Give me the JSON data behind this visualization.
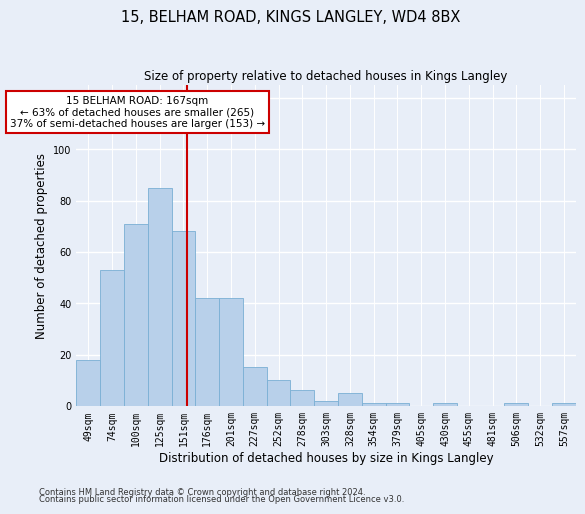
{
  "title": "15, BELHAM ROAD, KINGS LANGLEY, WD4 8BX",
  "subtitle": "Size of property relative to detached houses in Kings Langley",
  "xlabel": "Distribution of detached houses by size in Kings Langley",
  "ylabel": "Number of detached properties",
  "footnote1": "Contains HM Land Registry data © Crown copyright and database right 2024.",
  "footnote2": "Contains public sector information licensed under the Open Government Licence v3.0.",
  "categories": [
    "49sqm",
    "74sqm",
    "100sqm",
    "125sqm",
    "151sqm",
    "176sqm",
    "201sqm",
    "227sqm",
    "252sqm",
    "278sqm",
    "303sqm",
    "328sqm",
    "354sqm",
    "379sqm",
    "405sqm",
    "430sqm",
    "455sqm",
    "481sqm",
    "506sqm",
    "532sqm",
    "557sqm"
  ],
  "values": [
    18,
    53,
    71,
    85,
    68,
    42,
    42,
    15,
    10,
    6,
    2,
    5,
    1,
    1,
    0,
    1,
    0,
    0,
    1,
    0,
    1
  ],
  "bar_color": "#b8d0ea",
  "bar_edge_color": "#7aafd4",
  "property_line_label": "15 BELHAM ROAD: 167sqm",
  "annotation_line1": "← 63% of detached houses are smaller (265)",
  "annotation_line2": "37% of semi-detached houses are larger (153) →",
  "line_color": "#cc0000",
  "annot_box_facecolor": "#ffffff",
  "annot_box_edgecolor": "#cc0000",
  "ylim": [
    0,
    125
  ],
  "yticks": [
    0,
    20,
    40,
    60,
    80,
    100,
    120
  ],
  "bg_color": "#e8eef8",
  "grid_color": "#ffffff",
  "title_fontsize": 10.5,
  "xlabel_fontsize": 8.5,
  "ylabel_fontsize": 8.5,
  "tick_fontsize": 7,
  "annot_fontsize": 7.5,
  "footnote_fontsize": 6,
  "property_line_bar_index": 4.64
}
